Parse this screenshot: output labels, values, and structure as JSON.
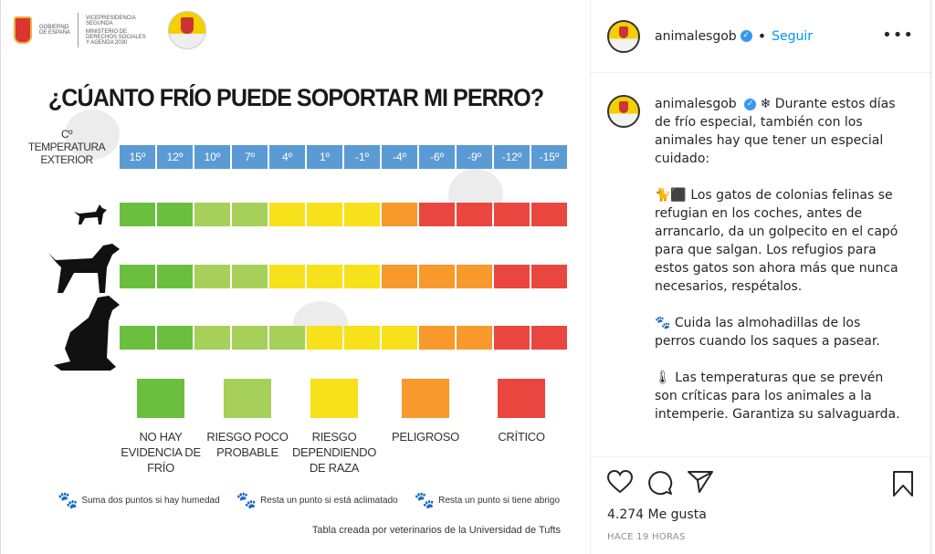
{
  "infographic": {
    "logo_text_1": "GOBIERNO DE ESPAÑA",
    "logo_text_2": "VICEPRESIDENCIA SEGUNDA",
    "logo_text_3": "MINISTERIO DE DERECHOS SOCIALES Y AGENDA 2030",
    "title": "¿CÚANTO FRÍO PUEDE SOPORTAR MI PERRO?",
    "temp_unit": "Cº",
    "temp_label_1": "TEMPERATURA",
    "temp_label_2": "EXTERIOR",
    "temperatures": [
      "15º",
      "12º",
      "10º",
      "7º",
      "4º",
      "1º",
      "-1º",
      "-4º",
      "-6º",
      "-9º",
      "-12º",
      "-15º"
    ],
    "risk_rows": {
      "small_dog": [
        "g",
        "g",
        "lg",
        "lg",
        "y",
        "y",
        "y",
        "o",
        "r",
        "r",
        "r",
        "r"
      ],
      "medium_dog": [
        "g",
        "g",
        "lg",
        "lg",
        "y",
        "y",
        "y",
        "o",
        "o",
        "o",
        "r",
        "r"
      ],
      "large_dog": [
        "g",
        "g",
        "lg",
        "lg",
        "lg",
        "y",
        "y",
        "y",
        "o",
        "o",
        "r",
        "r"
      ]
    },
    "colors": {
      "g": "#6bbf3f",
      "lg": "#a6d05a",
      "y": "#f7e11a",
      "o": "#f7992b",
      "r": "#ea4640",
      "blue": "#5b9bd5"
    },
    "legend": [
      {
        "key": "g",
        "label": "NO HAY EVIDENCIA DE FRÍO"
      },
      {
        "key": "lg",
        "label": "RIESGO POCO PROBABLE"
      },
      {
        "key": "y",
        "label": "RIESGO DEPENDIENDO DE RAZA"
      },
      {
        "key": "o",
        "label": "PELIGROSO"
      },
      {
        "key": "r",
        "label": "CRÍTICO"
      }
    ],
    "notes": [
      "Suma dos puntos si hay humedad",
      "Resta un punto si está aclimatado",
      "Resta un punto si tiene abrigo"
    ],
    "credit": "Tabla creada por veterinarios de la Universidad de Tufts"
  },
  "header": {
    "username": "animalesgob",
    "follow": "Seguir",
    "more": "•••"
  },
  "caption": {
    "username": "animalesgob",
    "p1": "❄ Durante estos días de frío especial, también con los animales hay que tener un especial cuidado:",
    "p2": "🐈⬛ Los gatos de colonias felinas se refugian en los coches, antes de arrancarlo, da un golpecito en el capó para que salgan. Los refugios para estos gatos son ahora más que nunca necesarios, respétalos.",
    "p3": "🐾 Cuida las almohadillas de los perros cuando los saques a pasear.",
    "p4": "🌡 Las temperaturas que se prevén son críticas para los animales a la intemperie. Garantiza su salvaguarda."
  },
  "likes": "4.274 Me gusta",
  "time": "HACE 19 HORAS"
}
